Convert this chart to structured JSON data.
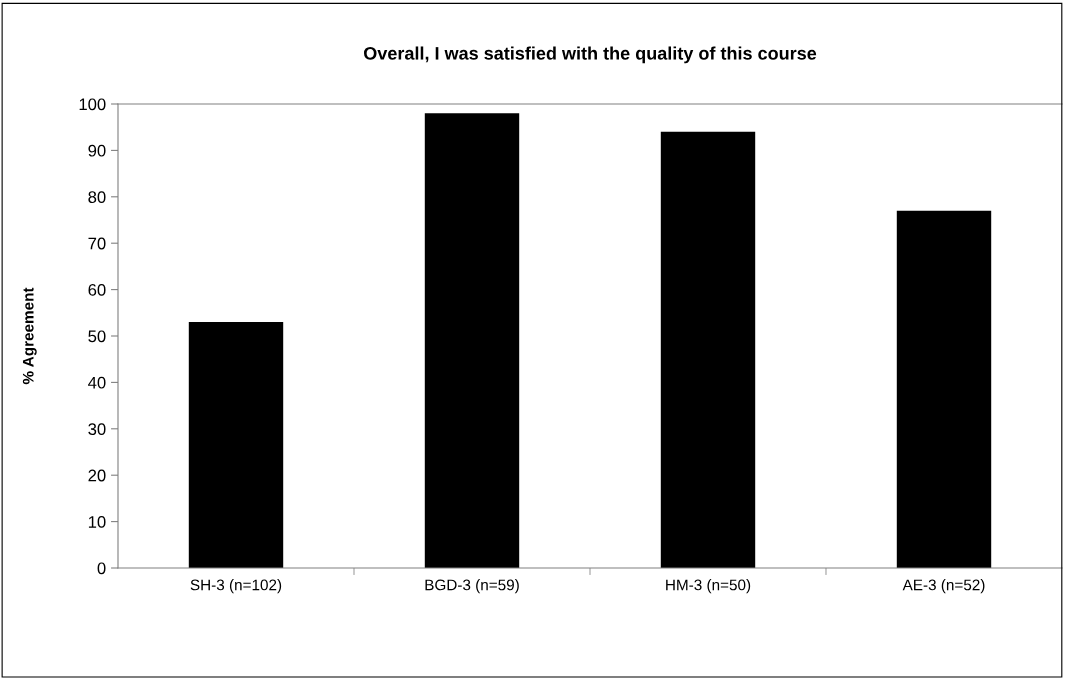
{
  "chart_data": {
    "type": "bar",
    "title": "Overall, I was satisfied with the quality of this course",
    "ylabel": "% Agreement",
    "categories": [
      "SH-3 (n=102)",
      "BGD-3 (n=59)",
      "HM-3 (n=50)",
      "AE-3 (n=52)"
    ],
    "values": [
      53,
      98,
      94,
      77
    ],
    "color": "#000000",
    "ylim": [
      0,
      100
    ],
    "yticks": [
      0,
      10,
      20,
      30,
      40,
      50,
      60,
      70,
      80,
      90,
      100
    ],
    "grid": false,
    "legend": false
  }
}
